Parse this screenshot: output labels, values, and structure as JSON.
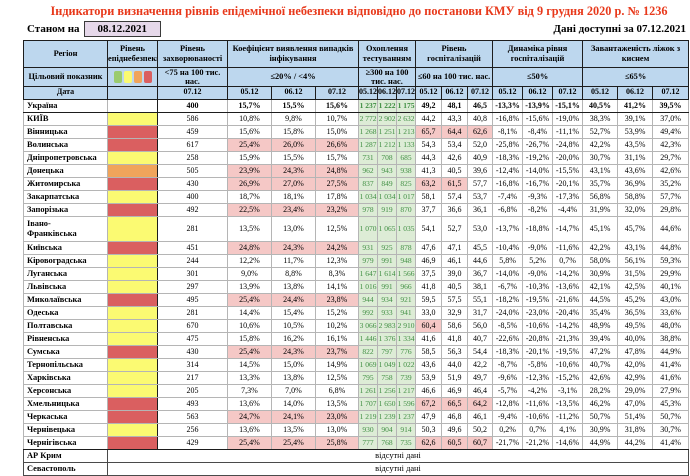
{
  "title": "Індикатори визначення рівнів епідемічної небезпеки відповідно до постанови КМУ від 9 грудня 2020 р. № 1236",
  "as_of": {
    "label": "Станом на",
    "date": "08.12.2021"
  },
  "data_available": "Дані доступні за 07.12.2021",
  "colors": {
    "title_red": "#e8391b",
    "header_blue": "#bdd7ee",
    "asof_box": "#e6d8ea",
    "danger_yellow": "#fbfa72",
    "danger_red": "#da5f60",
    "danger_orange": "#f0a45b",
    "legend_green": "#9bcb6e",
    "highlight_pink": "#f5c8c6",
    "testing_bg": "#ddecd6",
    "testing_text": "#3f8e42"
  },
  "table": {
    "header": {
      "region_label": "Регіон",
      "danger_label": "Рівень епіднебезпеки",
      "target_label": "Цільовий показник",
      "date_label": "Дата",
      "legend_swatches": [
        "green",
        "yellow",
        "orange",
        "red"
      ],
      "groups": [
        {
          "key": "morb",
          "label": "Рівень захворюваності",
          "target": "<75 на 100 тис. нас.",
          "dates": [
            "07.12"
          ]
        },
        {
          "key": "det",
          "label": "Коефіцієнт виявлення випадків інфікування",
          "target": "≤20% / <4%",
          "dates": [
            "05.12",
            "06.12",
            "07.12"
          ]
        },
        {
          "key": "test",
          "label": "Охоплення тестуванням",
          "target": "≥300 на 100 тис. нас.",
          "dates": [
            "05.12",
            "06.12",
            "07.12"
          ]
        },
        {
          "key": "hosp",
          "label": "Рівень госпіталізацій",
          "target": "≤60 на 100 тис. нас.",
          "dates": [
            "05.12",
            "06.12",
            "07.12"
          ]
        },
        {
          "key": "dyn",
          "label": "Динаміка рівня госпіталізацій",
          "target": "≤50%",
          "dates": [
            "05.12",
            "06.12",
            "07.12"
          ]
        },
        {
          "key": "oxy",
          "label": "Завантаженість ліжок з киснем",
          "target": "≤65%",
          "dates": [
            "05.12",
            "06.12",
            "07.12"
          ]
        }
      ]
    },
    "no_data_text": "відсутні дані",
    "rows": [
      {
        "name": "Україна",
        "bold": true,
        "danger": null,
        "morb": "400",
        "det": [
          "15,7%",
          "15,5%",
          "15,6%"
        ],
        "test": [
          "1 237",
          "1 222",
          "1 175"
        ],
        "hosp": [
          "49,2",
          "48,1",
          "46,5"
        ],
        "dyn": [
          "-13,3%",
          "-13,9%",
          "-15,1%"
        ],
        "oxy": [
          "40,5%",
          "41,2%",
          "39,5%"
        ]
      },
      {
        "name": "КИЇВ",
        "danger": "yellow",
        "morb": "586",
        "det": [
          "10,8%",
          "9,8%",
          "10,7%"
        ],
        "test": [
          "2 772",
          "2 902",
          "2 632"
        ],
        "hosp": [
          "44,2",
          "43,3",
          "40,8"
        ],
        "dyn": [
          "-16,8%",
          "-15,6%",
          "-19,0%"
        ],
        "oxy": [
          "38,3%",
          "39,1%",
          "37,0%"
        ]
      },
      {
        "name": "Вінницька",
        "danger": "red",
        "morb": "459",
        "det": [
          "15,6%",
          "15,8%",
          "15,0%"
        ],
        "test": [
          "1 268",
          "1 251",
          "1 213"
        ],
        "hosp": [
          "65,7",
          "64,4",
          "62,6"
        ],
        "hosp_hl": [
          true,
          true,
          true
        ],
        "dyn": [
          "-8,1%",
          "-8,4%",
          "-11,1%"
        ],
        "oxy": [
          "52,7%",
          "53,9%",
          "49,4%"
        ]
      },
      {
        "name": "Волинська",
        "danger": "red",
        "morb": "617",
        "det": [
          "25,4%",
          "26,0%",
          "26,6%"
        ],
        "det_hl": [
          true,
          true,
          true
        ],
        "test": [
          "1 287",
          "1 212",
          "1 133"
        ],
        "hosp": [
          "54,3",
          "53,4",
          "52,0"
        ],
        "dyn": [
          "-25,8%",
          "-26,7%",
          "-24,8%"
        ],
        "oxy": [
          "42,2%",
          "43,5%",
          "42,3%"
        ]
      },
      {
        "name": "Дніпропетровська",
        "danger": "yellow",
        "morb": "258",
        "det": [
          "15,9%",
          "15,5%",
          "15,7%"
        ],
        "test": [
          "731",
          "708",
          "685"
        ],
        "hosp": [
          "44,3",
          "42,6",
          "40,9"
        ],
        "dyn": [
          "-18,3%",
          "-19,2%",
          "-20,0%"
        ],
        "oxy": [
          "30,7%",
          "31,1%",
          "29,7%"
        ]
      },
      {
        "name": "Донецька",
        "danger": "orange",
        "morb": "505",
        "det": [
          "23,9%",
          "24,3%",
          "24,8%"
        ],
        "det_hl": [
          true,
          true,
          true
        ],
        "test": [
          "962",
          "943",
          "938"
        ],
        "hosp": [
          "41,3",
          "40,5",
          "39,6"
        ],
        "dyn": [
          "-12,4%",
          "-14,0%",
          "-15,5%"
        ],
        "oxy": [
          "43,1%",
          "43,6%",
          "42,6%"
        ]
      },
      {
        "name": "Житомирська",
        "danger": "red",
        "morb": "430",
        "det": [
          "26,9%",
          "27,0%",
          "27,5%"
        ],
        "det_hl": [
          true,
          true,
          true
        ],
        "test": [
          "837",
          "849",
          "825"
        ],
        "hosp": [
          "63,2",
          "61,5",
          "57,7"
        ],
        "hosp_hl": [
          true,
          true,
          false
        ],
        "dyn": [
          "-16,8%",
          "-16,7%",
          "-20,1%"
        ],
        "oxy": [
          "35,7%",
          "36,9%",
          "35,2%"
        ]
      },
      {
        "name": "Закарпатська",
        "danger": "yellow",
        "morb": "400",
        "det": [
          "18,7%",
          "18,1%",
          "17,8%"
        ],
        "test": [
          "1 034",
          "1 034",
          "1 017"
        ],
        "hosp": [
          "58,1",
          "57,4",
          "53,7"
        ],
        "dyn": [
          "-7,4%",
          "-9,3%",
          "-17,3%"
        ],
        "oxy": [
          "56,8%",
          "58,8%",
          "57,7%"
        ]
      },
      {
        "name": "Запорізька",
        "danger": "red",
        "morb": "492",
        "det": [
          "22,5%",
          "23,4%",
          "23,2%"
        ],
        "det_hl": [
          true,
          true,
          true
        ],
        "test": [
          "978",
          "919",
          "870"
        ],
        "hosp": [
          "37,7",
          "36,6",
          "36,1"
        ],
        "dyn": [
          "-6,8%",
          "-8,2%",
          "-4,4%"
        ],
        "oxy": [
          "31,9%",
          "32,0%",
          "29,8%"
        ]
      },
      {
        "name": "Івано-\nФранківська",
        "tall": true,
        "danger": "yellow",
        "morb": "281",
        "det": [
          "13,5%",
          "13,0%",
          "12,5%"
        ],
        "test": [
          "1 070",
          "1 065",
          "1 035"
        ],
        "hosp": [
          "54,1",
          "52,7",
          "53,0"
        ],
        "dyn": [
          "-13,7%",
          "-18,8%",
          "-14,7%"
        ],
        "oxy": [
          "45,1%",
          "45,7%",
          "44,6%"
        ]
      },
      {
        "name": "Київська",
        "danger": "red",
        "morb": "451",
        "det": [
          "24,8%",
          "24,3%",
          "24,2%"
        ],
        "det_hl": [
          true,
          true,
          true
        ],
        "test": [
          "931",
          "925",
          "878"
        ],
        "hosp": [
          "47,6",
          "47,1",
          "45,5"
        ],
        "dyn": [
          "-10,4%",
          "-9,0%",
          "-11,6%"
        ],
        "oxy": [
          "42,2%",
          "43,1%",
          "44,8%"
        ]
      },
      {
        "name": "Кіровоградська",
        "danger": "yellow",
        "morb": "244",
        "det": [
          "12,2%",
          "11,7%",
          "12,3%"
        ],
        "test": [
          "979",
          "991",
          "948"
        ],
        "hosp": [
          "46,9",
          "46,1",
          "44,6"
        ],
        "dyn": [
          "5,8%",
          "5,2%",
          "0,7%"
        ],
        "oxy": [
          "58,0%",
          "56,1%",
          "59,3%"
        ]
      },
      {
        "name": "Луганська",
        "danger": "yellow",
        "morb": "301",
        "det": [
          "9,0%",
          "8,8%",
          "8,3%"
        ],
        "test": [
          "1 647",
          "1 614",
          "1 566"
        ],
        "hosp": [
          "37,5",
          "39,0",
          "36,7"
        ],
        "dyn": [
          "-14,0%",
          "-9,0%",
          "-14,2%"
        ],
        "oxy": [
          "30,9%",
          "31,5%",
          "29,9%"
        ]
      },
      {
        "name": "Львівська",
        "danger": "yellow",
        "morb": "297",
        "det": [
          "13,9%",
          "13,8%",
          "14,1%"
        ],
        "test": [
          "1 016",
          "991",
          "966"
        ],
        "hosp": [
          "41,8",
          "40,5",
          "38,1"
        ],
        "dyn": [
          "-6,7%",
          "-10,3%",
          "-13,6%"
        ],
        "oxy": [
          "42,1%",
          "42,5%",
          "40,1%"
        ]
      },
      {
        "name": "Миколаївська",
        "danger": "red",
        "morb": "495",
        "det": [
          "25,4%",
          "24,4%",
          "23,8%"
        ],
        "det_hl": [
          true,
          true,
          true
        ],
        "test": [
          "944",
          "934",
          "921"
        ],
        "hosp": [
          "59,5",
          "57,5",
          "55,1"
        ],
        "dyn": [
          "-18,2%",
          "-19,5%",
          "-21,6%"
        ],
        "oxy": [
          "44,5%",
          "45,2%",
          "43,0%"
        ]
      },
      {
        "name": "Одеська",
        "danger": "yellow",
        "morb": "281",
        "det": [
          "14,4%",
          "15,4%",
          "15,2%"
        ],
        "test": [
          "992",
          "933",
          "941"
        ],
        "hosp": [
          "33,0",
          "32,9",
          "31,7"
        ],
        "dyn": [
          "-24,0%",
          "-23,0%",
          "-20,4%"
        ],
        "oxy": [
          "35,4%",
          "36,5%",
          "33,6%"
        ]
      },
      {
        "name": "Полтавська",
        "danger": "yellow",
        "morb": "670",
        "det": [
          "10,6%",
          "10,5%",
          "10,2%"
        ],
        "test": [
          "3 066",
          "2 983",
          "2 910"
        ],
        "hosp": [
          "60,4",
          "58,6",
          "56,0"
        ],
        "hosp_hl": [
          true,
          false,
          false
        ],
        "dyn": [
          "-8,5%",
          "-10,6%",
          "-14,2%"
        ],
        "oxy": [
          "48,9%",
          "49,5%",
          "48,0%"
        ]
      },
      {
        "name": "Рівненська",
        "danger": "yellow",
        "morb": "475",
        "det": [
          "15,8%",
          "16,2%",
          "16,1%"
        ],
        "test": [
          "1 446",
          "1 376",
          "1 334"
        ],
        "hosp": [
          "41,6",
          "41,8",
          "40,7"
        ],
        "dyn": [
          "-22,6%",
          "-20,8%",
          "-21,3%"
        ],
        "oxy": [
          "39,4%",
          "40,0%",
          "38,8%"
        ]
      },
      {
        "name": "Сумська",
        "danger": "red",
        "morb": "430",
        "det": [
          "25,4%",
          "24,3%",
          "23,7%"
        ],
        "det_hl": [
          true,
          true,
          true
        ],
        "test": [
          "822",
          "797",
          "776"
        ],
        "hosp": [
          "58,5",
          "56,3",
          "54,4"
        ],
        "dyn": [
          "-18,3%",
          "-20,1%",
          "-19,5%"
        ],
        "oxy": [
          "47,2%",
          "47,8%",
          "44,9%"
        ]
      },
      {
        "name": "Тернопільська",
        "danger": "yellow",
        "morb": "314",
        "det": [
          "14,5%",
          "15,0%",
          "14,9%"
        ],
        "test": [
          "1 069",
          "1 049",
          "1 022"
        ],
        "hosp": [
          "43,6",
          "44,0",
          "42,2"
        ],
        "dyn": [
          "-8,7%",
          "-5,8%",
          "-10,6%"
        ],
        "oxy": [
          "40,7%",
          "42,0%",
          "41,4%"
        ]
      },
      {
        "name": "Харківська",
        "danger": "yellow",
        "morb": "217",
        "det": [
          "13,3%",
          "13,8%",
          "12,5%"
        ],
        "test": [
          "795",
          "758",
          "739"
        ],
        "hosp": [
          "53,9",
          "51,9",
          "49,7"
        ],
        "dyn": [
          "-9,6%",
          "-12,3%",
          "-15,2%"
        ],
        "oxy": [
          "42,6%",
          "42,9%",
          "41,6%"
        ]
      },
      {
        "name": "Херсонська",
        "danger": "yellow",
        "morb": "205",
        "det": [
          "7,3%",
          "7,0%",
          "6,8%"
        ],
        "test": [
          "1 261",
          "1 256",
          "1 217"
        ],
        "hosp": [
          "46,6",
          "46,9",
          "46,4"
        ],
        "dyn": [
          "-5,7%",
          "-4,2%",
          "-3,1%"
        ],
        "oxy": [
          "28,2%",
          "29,0%",
          "27,9%"
        ]
      },
      {
        "name": "Хмельницька",
        "danger": "red",
        "morb": "493",
        "det": [
          "13,6%",
          "14,0%",
          "13,5%"
        ],
        "test": [
          "1 707",
          "1 650",
          "1 596"
        ],
        "hosp": [
          "67,2",
          "66,5",
          "64,2"
        ],
        "hosp_hl": [
          true,
          true,
          true
        ],
        "dyn": [
          "-12,8%",
          "-11,6%",
          "-13,5%"
        ],
        "oxy": [
          "46,2%",
          "47,0%",
          "45,3%"
        ]
      },
      {
        "name": "Черкаська",
        "danger": "red",
        "morb": "563",
        "det": [
          "24,7%",
          "24,1%",
          "23,0%"
        ],
        "det_hl": [
          true,
          true,
          true
        ],
        "test": [
          "1 219",
          "1 239",
          "1 237"
        ],
        "hosp": [
          "47,9",
          "46,8",
          "46,1"
        ],
        "dyn": [
          "-9,4%",
          "-10,6%",
          "-11,2%"
        ],
        "oxy": [
          "50,7%",
          "51,4%",
          "50,7%"
        ]
      },
      {
        "name": "Чернівецька",
        "danger": "yellow",
        "morb": "256",
        "det": [
          "13,6%",
          "13,5%",
          "13,0%"
        ],
        "test": [
          "930",
          "904",
          "914"
        ],
        "hosp": [
          "50,3",
          "49,6",
          "50,2"
        ],
        "dyn": [
          "0,2%",
          "0,7%",
          "4,1%"
        ],
        "oxy": [
          "30,9%",
          "31,8%",
          "30,7%"
        ]
      },
      {
        "name": "Чернігівська",
        "last_main": true,
        "danger": "red",
        "morb": "429",
        "det": [
          "25,4%",
          "25,4%",
          "25,8%"
        ],
        "det_hl": [
          true,
          true,
          true
        ],
        "test": [
          "777",
          "768",
          "735"
        ],
        "hosp": [
          "62,6",
          "60,5",
          "60,7"
        ],
        "hosp_hl": [
          true,
          true,
          true
        ],
        "dyn": [
          "-21,7%",
          "-21,2%",
          "-14,6%"
        ],
        "oxy": [
          "44,9%",
          "44,2%",
          "41,4%"
        ]
      },
      {
        "name": "АР Крим",
        "no_data": true
      },
      {
        "name": "Севастополь",
        "no_data": true
      }
    ]
  }
}
